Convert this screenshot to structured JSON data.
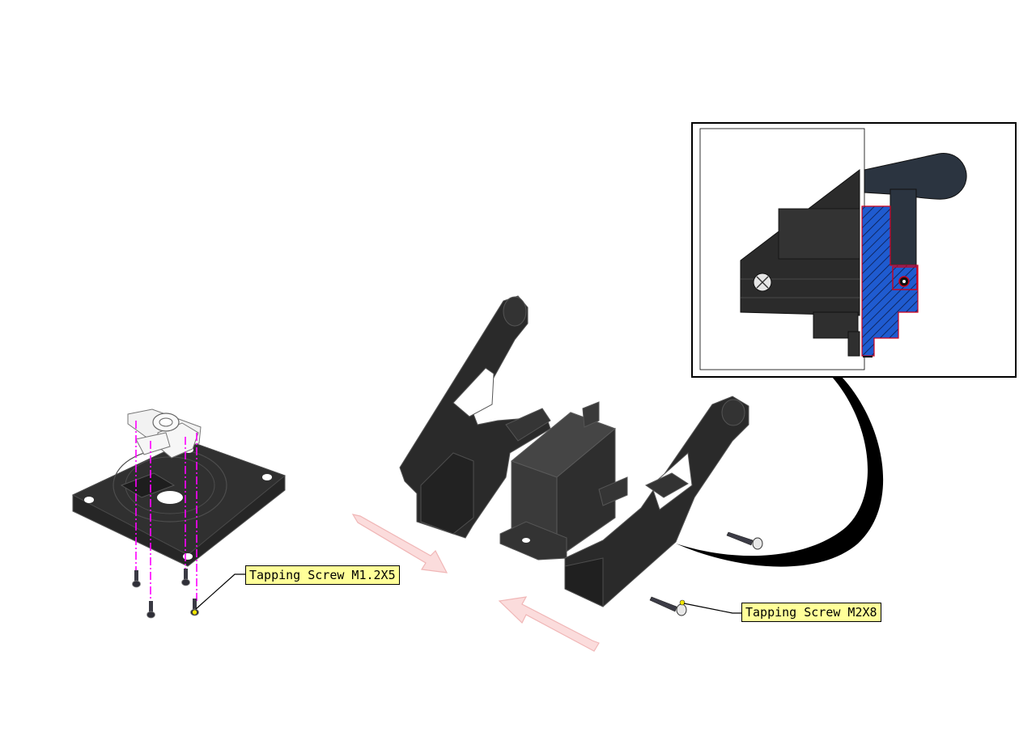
{
  "callouts": {
    "screw_small": "Tapping Screw M1.2X5",
    "screw_large": "Tapping Screw M2X8"
  },
  "colors": {
    "part_dark": "#2a2a2a",
    "part_face": "#3a3a3a",
    "edge_highlight": "#5a5a5a",
    "horn_white": "#f2f2f2",
    "axis_magenta": "#ff00ff",
    "arrow_pink": "#f7c8c8",
    "callout_fill": "#ffff99",
    "section_hatch_blue": "#1f5bd0",
    "section_outline_red": "#d0001a",
    "screw_tip_yellow": "#f2e600"
  },
  "icons": {
    "detail_view": "section-detail-view",
    "explode_arrow": "assembly-direction-arrow"
  }
}
